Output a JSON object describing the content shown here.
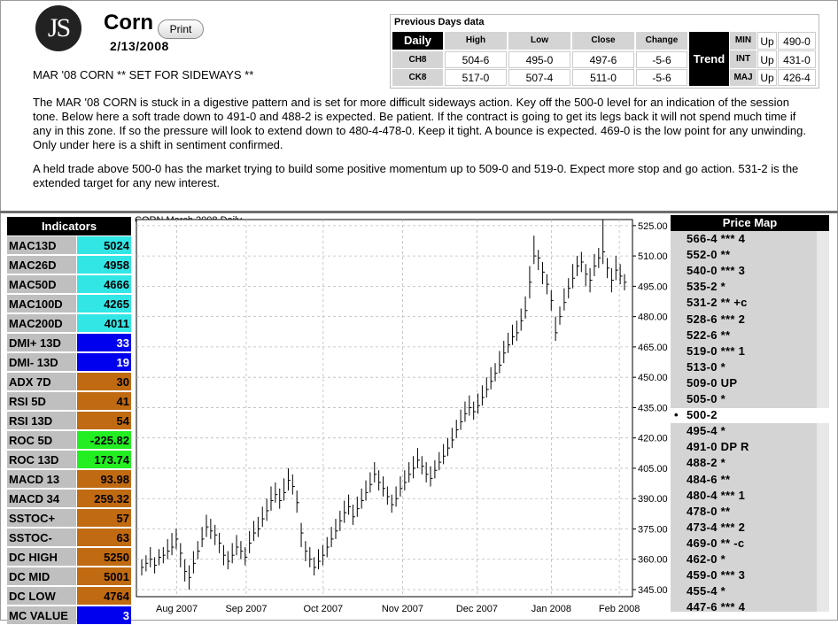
{
  "header": {
    "logo_text": "JS",
    "title": "Corn",
    "print_label": "Print",
    "date": "2/13/2008",
    "subhead": "MAR '08 CORN ** SET FOR SIDEWAYS **",
    "paragraph1": "The MAR '08 CORN is stuck in a digestive pattern and is set for more difficult sideways action. Key off the 500-0 level for an indication of the session tone. Below here a soft trade down to 491-0 and 488-2 is expected. Be patient. If the contract is going to get its legs back it will not spend much time if any in this zone. If so the pressure will look to extend down to 480-4-478-0. Keep it tight. A bounce is expected. 469-0 is the low point for any unwinding. Only under here is a shift in sentiment confirmed.",
    "paragraph2": "A held trade above 500-0 has the market trying to build some positive momentum up to 509-0 and 519-0. Expect more stop and go action. 531-2 is the extended target for any new interest."
  },
  "previous_days": {
    "title": "Previous Days data",
    "daily_label": "Daily",
    "columns": [
      "High",
      "Low",
      "Close",
      "Change"
    ],
    "rows": [
      {
        "contract": "CH8",
        "high": "504-6",
        "low": "495-0",
        "close": "497-6",
        "change": "-5-6"
      },
      {
        "contract": "CK8",
        "high": "517-0",
        "low": "507-4",
        "close": "511-0",
        "change": "-5-6"
      }
    ],
    "trend_label": "Trend",
    "trend": [
      {
        "term": "MIN",
        "dir": "Up",
        "value": "490-0"
      },
      {
        "term": "INT",
        "dir": "Up",
        "value": "431-0"
      },
      {
        "term": "MAJ",
        "dir": "Up",
        "value": "426-4"
      }
    ]
  },
  "indicators": {
    "title": "Indicators",
    "items": [
      {
        "label": "MAC13D",
        "value": "5024",
        "color": "#33e6e6"
      },
      {
        "label": "MAC26D",
        "value": "4958",
        "color": "#33e6e6"
      },
      {
        "label": "MAC50D",
        "value": "4666",
        "color": "#33e6e6"
      },
      {
        "label": "MAC100D",
        "value": "4265",
        "color": "#33e6e6"
      },
      {
        "label": "MAC200D",
        "value": "4011",
        "color": "#33e6e6"
      },
      {
        "label": "DMI+ 13D",
        "value": "33",
        "color": "#0000ee"
      },
      {
        "label": "DMI- 13D",
        "value": "19",
        "color": "#0000ee"
      },
      {
        "label": "ADX 7D",
        "value": "30",
        "color": "#c06a12"
      },
      {
        "label": "RSI 5D",
        "value": "41",
        "color": "#c06a12"
      },
      {
        "label": "RSI 13D",
        "value": "54",
        "color": "#c06a12"
      },
      {
        "label": "ROC 5D",
        "value": "-225.82",
        "color": "#22ee22"
      },
      {
        "label": "ROC 13D",
        "value": "173.74",
        "color": "#22ee22"
      },
      {
        "label": "MACD 13",
        "value": "93.98",
        "color": "#c06a12"
      },
      {
        "label": "MACD 34",
        "value": "259.32",
        "color": "#c06a12"
      },
      {
        "label": "SSTOC+",
        "value": "57",
        "color": "#c06a12"
      },
      {
        "label": "SSTOC-",
        "value": "63",
        "color": "#c06a12"
      },
      {
        "label": "DC HIGH",
        "value": "5250",
        "color": "#c06a12"
      },
      {
        "label": "DC MID",
        "value": "5001",
        "color": "#c06a12"
      },
      {
        "label": "DC LOW",
        "value": "4764",
        "color": "#c06a12"
      },
      {
        "label": "MC VALUE",
        "value": "3",
        "color": "#0000ee"
      }
    ]
  },
  "chart_data": {
    "type": "ohlc",
    "title": "CORN March 2008 Daily",
    "ylim": [
      340,
      528
    ],
    "y_ticks": [
      "525.00",
      "510.00",
      "495.00",
      "480.00",
      "465.00",
      "450.00",
      "435.00",
      "420.00",
      "405.00",
      "390.00",
      "375.00",
      "360.00",
      "345.00"
    ],
    "x_ticks": [
      "Aug 2007",
      "Sep 2007",
      "Oct 2007",
      "Nov 2007",
      "Dec 2007",
      "Jan 2008",
      "Feb 2008"
    ],
    "grid": true,
    "bars": [
      [
        356,
        352,
        360
      ],
      [
        358,
        354,
        362
      ],
      [
        360,
        356,
        366
      ],
      [
        357,
        353,
        361
      ],
      [
        361,
        357,
        365
      ],
      [
        362,
        358,
        366
      ],
      [
        364,
        360,
        370
      ],
      [
        366,
        362,
        373
      ],
      [
        370,
        365,
        375
      ],
      [
        363,
        356,
        368
      ],
      [
        354,
        349,
        360
      ],
      [
        351,
        345,
        357
      ],
      [
        358,
        353,
        364
      ],
      [
        364,
        360,
        369
      ],
      [
        370,
        366,
        376
      ],
      [
        376,
        371,
        382
      ],
      [
        374,
        370,
        380
      ],
      [
        372,
        367,
        377
      ],
      [
        368,
        363,
        373
      ],
      [
        362,
        357,
        367
      ],
      [
        359,
        355,
        364
      ],
      [
        362,
        358,
        368
      ],
      [
        366,
        362,
        372
      ],
      [
        364,
        360,
        369
      ],
      [
        361,
        357,
        366
      ],
      [
        368,
        363,
        374
      ],
      [
        373,
        369,
        379
      ],
      [
        375,
        371,
        381
      ],
      [
        380,
        376,
        386
      ],
      [
        384,
        379,
        390
      ],
      [
        389,
        384,
        396
      ],
      [
        392,
        388,
        398
      ],
      [
        389,
        385,
        395
      ],
      [
        393,
        389,
        400
      ],
      [
        399,
        394,
        405
      ],
      [
        396,
        392,
        402
      ],
      [
        388,
        383,
        394
      ],
      [
        373,
        366,
        378
      ],
      [
        364,
        359,
        369
      ],
      [
        360,
        356,
        366
      ],
      [
        356,
        352,
        361
      ],
      [
        359,
        355,
        365
      ],
      [
        362,
        357,
        367
      ],
      [
        366,
        361,
        371
      ],
      [
        370,
        366,
        376
      ],
      [
        374,
        370,
        380
      ],
      [
        379,
        374,
        384
      ],
      [
        383,
        378,
        389
      ],
      [
        386,
        382,
        392
      ],
      [
        381,
        377,
        387
      ],
      [
        385,
        381,
        391
      ],
      [
        389,
        385,
        395
      ],
      [
        393,
        389,
        399
      ],
      [
        397,
        393,
        403
      ],
      [
        402,
        398,
        408
      ],
      [
        398,
        394,
        404
      ],
      [
        395,
        391,
        401
      ],
      [
        391,
        387,
        396
      ],
      [
        387,
        383,
        392
      ],
      [
        390,
        386,
        396
      ],
      [
        395,
        391,
        401
      ],
      [
        398,
        394,
        404
      ],
      [
        402,
        398,
        408
      ],
      [
        405,
        400,
        411
      ],
      [
        409,
        405,
        415
      ],
      [
        406,
        402,
        411
      ],
      [
        402,
        398,
        408
      ],
      [
        400,
        396,
        406
      ],
      [
        404,
        400,
        409
      ],
      [
        408,
        404,
        413
      ],
      [
        411,
        407,
        417
      ],
      [
        415,
        411,
        420
      ],
      [
        419,
        415,
        425
      ],
      [
        424,
        420,
        429
      ],
      [
        428,
        424,
        434
      ],
      [
        432,
        428,
        438
      ],
      [
        435,
        431,
        441
      ],
      [
        433,
        429,
        438
      ],
      [
        436,
        432,
        442
      ],
      [
        440,
        436,
        446
      ],
      [
        444,
        440,
        450
      ],
      [
        448,
        444,
        455
      ],
      [
        452,
        448,
        457
      ],
      [
        456,
        452,
        463
      ],
      [
        462,
        457,
        468
      ],
      [
        466,
        462,
        472
      ],
      [
        470,
        466,
        476
      ],
      [
        472,
        468,
        478
      ],
      [
        478,
        473,
        484
      ],
      [
        483,
        479,
        490
      ],
      [
        497,
        489,
        505
      ],
      [
        510,
        506,
        520
      ],
      [
        509,
        503,
        513
      ],
      [
        502,
        496,
        507
      ],
      [
        496,
        491,
        501
      ],
      [
        488,
        483,
        493
      ],
      [
        472,
        468,
        480
      ],
      [
        480,
        476,
        485
      ],
      [
        487,
        483,
        494
      ],
      [
        494,
        489,
        499
      ],
      [
        499,
        494,
        506
      ],
      [
        505,
        500,
        510
      ],
      [
        507,
        502,
        512
      ],
      [
        501,
        495,
        506
      ],
      [
        498,
        492,
        504
      ],
      [
        505,
        500,
        511
      ],
      [
        509,
        504,
        514
      ],
      [
        512,
        506,
        528
      ],
      [
        504,
        499,
        509
      ],
      [
        498,
        492,
        504
      ],
      [
        503,
        498,
        510
      ],
      [
        500,
        496,
        506
      ],
      [
        497,
        493,
        501
      ]
    ]
  },
  "price_map": {
    "title": "Price Map",
    "above": [
      "566-4 *** 4",
      "552-0 **",
      "540-0 *** 3",
      "535-2 *",
      "531-2 ** +c",
      "528-6 *** 2",
      "522-6 **",
      "519-0 *** 1",
      "513-0 *",
      "509-0 UP",
      "505-0 *"
    ],
    "current": "500-2",
    "below": [
      "495-4 *",
      "491-0 DP R",
      "488-2 *",
      "484-6 **",
      "480-4 *** 1",
      "478-0 **",
      "473-4 *** 2",
      "469-0 ** -c",
      "462-0 *",
      "459-0 *** 3",
      "455-4 *",
      "447-6 *** 4"
    ]
  }
}
